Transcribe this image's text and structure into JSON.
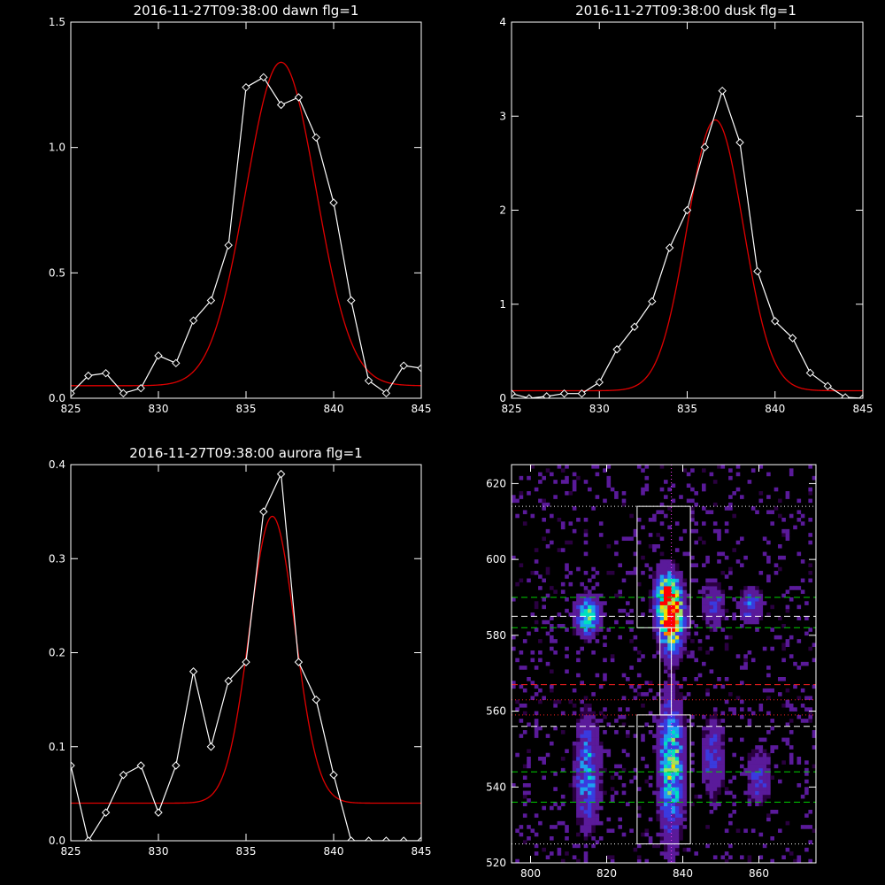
{
  "chart_data": [
    {
      "type": "line",
      "title": "2016-11-27T09:38:00 dawn flg=1",
      "xlabel": "",
      "ylabel": "",
      "xlim": [
        825,
        845
      ],
      "ylim": [
        0,
        1.5
      ],
      "xticks": [
        "825",
        "830",
        "835",
        "840",
        "845"
      ],
      "yticks": [
        "0.0",
        "0.5",
        "1.0",
        "1.5"
      ],
      "series": [
        {
          "role": "data",
          "color": "#ffffff",
          "marker": "diamond",
          "x": [
            825,
            826,
            827,
            828,
            829,
            830,
            831,
            832,
            833,
            834,
            835,
            836,
            837,
            838,
            839,
            840,
            841,
            842,
            843,
            844,
            845
          ],
          "y": [
            0.02,
            0.09,
            0.1,
            0.02,
            0.04,
            0.17,
            0.14,
            0.31,
            0.39,
            0.61,
            1.24,
            1.28,
            1.17,
            1.2,
            1.04,
            0.78,
            0.39,
            0.07,
            0.02,
            0.13,
            0.12
          ]
        },
        {
          "role": "fit",
          "color": "#e00000",
          "gauss": {
            "amp": 1.29,
            "center": 837.0,
            "sigma": 2.0,
            "offset": 0.05
          }
        }
      ]
    },
    {
      "type": "line",
      "title": "2016-11-27T09:38:00 dusk flg=1",
      "xlabel": "",
      "ylabel": "",
      "xlim": [
        825,
        845
      ],
      "ylim": [
        0,
        4
      ],
      "xticks": [
        "825",
        "830",
        "835",
        "840",
        "845"
      ],
      "yticks": [
        "0",
        "1",
        "2",
        "3",
        "4"
      ],
      "series": [
        {
          "role": "data",
          "color": "#ffffff",
          "marker": "diamond",
          "x": [
            825,
            826,
            827,
            828,
            829,
            830,
            831,
            832,
            833,
            834,
            835,
            836,
            837,
            838,
            839,
            840,
            841,
            842,
            843,
            844,
            845
          ],
          "y": [
            0.05,
            0.0,
            0.02,
            0.05,
            0.05,
            0.17,
            0.52,
            0.76,
            1.03,
            1.6,
            2.0,
            2.67,
            3.27,
            2.72,
            1.35,
            0.82,
            0.64,
            0.27,
            0.13,
            0.01,
            0.0
          ]
        },
        {
          "role": "fit",
          "color": "#e00000",
          "gauss": {
            "amp": 2.88,
            "center": 836.6,
            "sigma": 1.6,
            "offset": 0.08
          }
        }
      ]
    },
    {
      "type": "line",
      "title": "2016-11-27T09:38:00 aurora flg=1",
      "xlabel": "",
      "ylabel": "",
      "xlim": [
        825,
        845
      ],
      "ylim": [
        0,
        0.4
      ],
      "xticks": [
        "825",
        "830",
        "835",
        "840",
        "845"
      ],
      "yticks": [
        "0.0",
        "0.1",
        "0.2",
        "0.3",
        "0.4"
      ],
      "series": [
        {
          "role": "data",
          "color": "#ffffff",
          "marker": "diamond",
          "x": [
            825,
            826,
            827,
            828,
            829,
            830,
            831,
            832,
            833,
            834,
            835,
            836,
            837,
            838,
            839,
            840,
            841,
            842,
            843,
            844,
            845
          ],
          "y": [
            0.08,
            0.0,
            0.03,
            0.07,
            0.08,
            0.03,
            0.08,
            0.18,
            0.1,
            0.17,
            0.19,
            0.35,
            0.39,
            0.19,
            0.15,
            0.07,
            0.0,
            0.0,
            0.0,
            0.0,
            0.0
          ]
        },
        {
          "role": "fit",
          "color": "#e00000",
          "gauss": {
            "amp": 0.305,
            "center": 836.5,
            "sigma": 1.3,
            "offset": 0.04
          }
        }
      ]
    },
    {
      "type": "heatmap",
      "title": "",
      "xlabel": "",
      "ylabel": "",
      "xlim": [
        795,
        875
      ],
      "ylim": [
        520,
        625
      ],
      "xticks": [
        {
          "v": 800,
          "label": "800"
        },
        {
          "v": 820,
          "label": "820"
        },
        {
          "v": 840,
          "label": "840"
        },
        {
          "v": 860,
          "label": "860"
        }
      ],
      "yticks": [
        {
          "v": 520,
          "label": "520"
        },
        {
          "v": 540,
          "label": "540"
        },
        {
          "v": 560,
          "label": "560"
        },
        {
          "v": 580,
          "label": "580"
        },
        {
          "v": 600,
          "label": "600"
        },
        {
          "v": 620,
          "label": "620"
        }
      ],
      "colormap": [
        "#2a0040",
        "#5a1a9a",
        "#3a3adf",
        "#1ea0f0",
        "#00e0c0",
        "#9fe060",
        "#f0e000",
        "#ff8000",
        "#ff0000"
      ],
      "blobs": [
        {
          "x": 837,
          "y": 584,
          "sx": 2.0,
          "sy": 5.0,
          "amp": 1.0
        },
        {
          "x": 836,
          "y": 591,
          "sx": 2.0,
          "sy": 4.0,
          "amp": 0.6
        },
        {
          "x": 815,
          "y": 585,
          "sx": 2.0,
          "sy": 3.0,
          "amp": 0.55
        },
        {
          "x": 837,
          "y": 545,
          "sx": 2.0,
          "sy": 11.0,
          "amp": 0.55
        },
        {
          "x": 815,
          "y": 544,
          "sx": 2.0,
          "sy": 9.0,
          "amp": 0.35
        },
        {
          "x": 848,
          "y": 548,
          "sx": 2.0,
          "sy": 7.0,
          "amp": 0.2
        },
        {
          "x": 860,
          "y": 543,
          "sx": 2.0,
          "sy": 5.0,
          "amp": 0.2
        },
        {
          "x": 858,
          "y": 588,
          "sx": 2.0,
          "sy": 3.0,
          "amp": 0.25
        },
        {
          "x": 848,
          "y": 588,
          "sx": 2.0,
          "sy": 4.0,
          "amp": 0.2
        }
      ],
      "noise_density": 0.12,
      "boxes": [
        {
          "x0": 828,
          "x1": 842,
          "y0": 582,
          "y1": 614,
          "color": "#ffffff"
        },
        {
          "x0": 828,
          "x1": 842,
          "y0": 525,
          "y1": 559,
          "color": "#ffffff"
        },
        {
          "x0": 834,
          "x1": 837,
          "y0": 559,
          "y1": 582,
          "color": "#ffffff"
        }
      ],
      "hlines": [
        {
          "y": 614,
          "color": "#ffffff",
          "style": "dotted"
        },
        {
          "y": 525,
          "color": "#ffffff",
          "style": "dotted"
        },
        {
          "y": 590,
          "color": "#00d000",
          "style": "dashed"
        },
        {
          "y": 585,
          "color": "#ffffff",
          "style": "dashed"
        },
        {
          "y": 582,
          "color": "#00d000",
          "style": "dashed"
        },
        {
          "y": 567,
          "color": "#ff2020",
          "style": "dashed"
        },
        {
          "y": 563,
          "color": "#ff2020",
          "style": "dotted"
        },
        {
          "y": 559,
          "color": "#ff2020",
          "style": "dotted"
        },
        {
          "y": 556,
          "color": "#ffffff",
          "style": "dashed"
        },
        {
          "y": 544,
          "color": "#00d000",
          "style": "dashed"
        },
        {
          "y": 536,
          "color": "#00d000",
          "style": "dashed"
        }
      ],
      "vlines": [
        {
          "x": 837,
          "color": "#ff40ff",
          "style": "dotted"
        }
      ]
    }
  ]
}
